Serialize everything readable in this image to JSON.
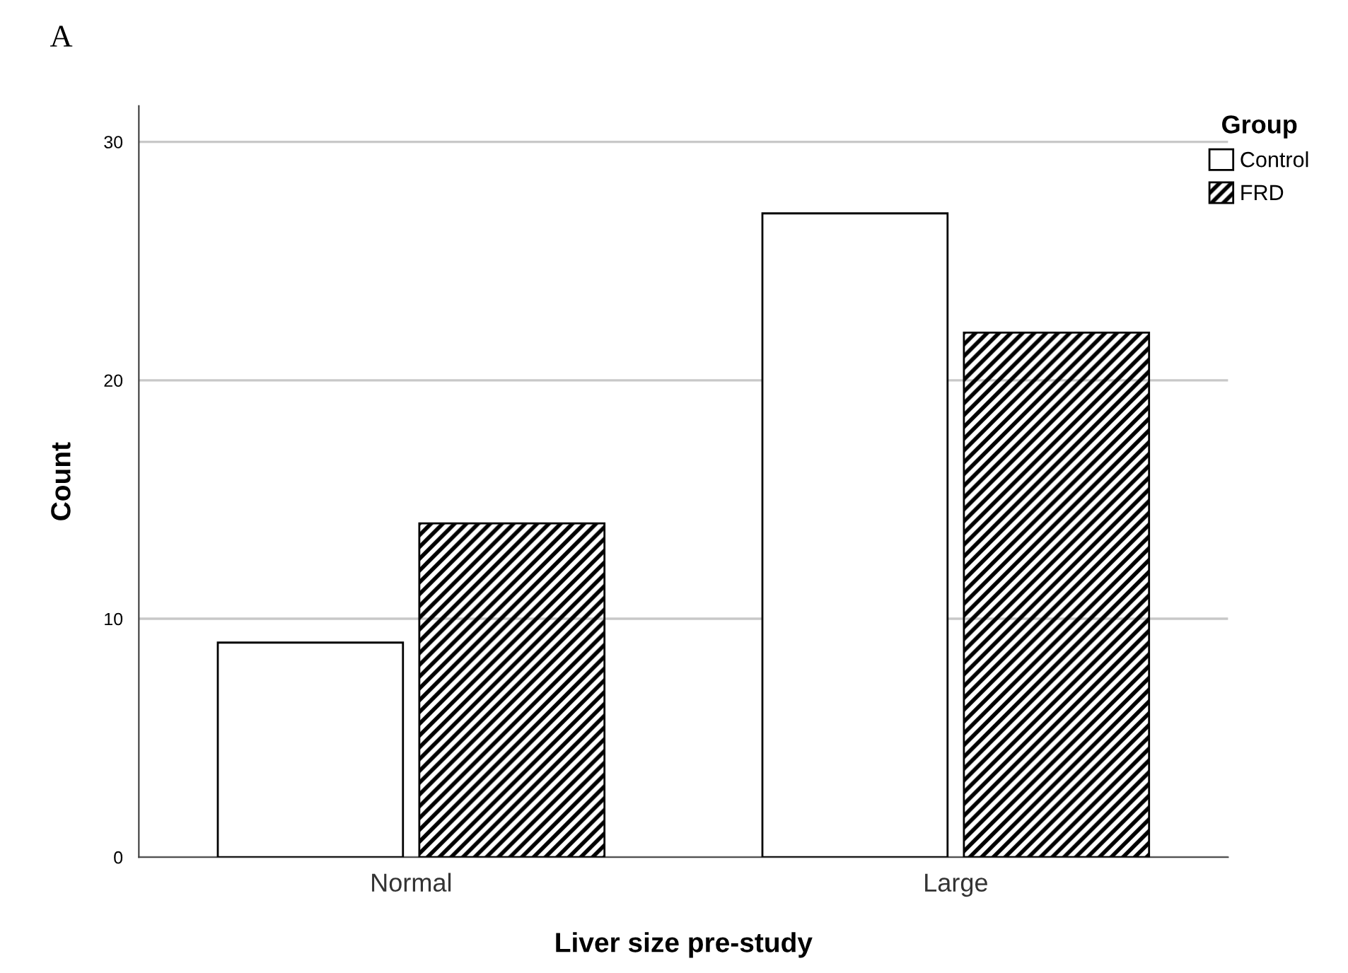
{
  "chart_data": {
    "type": "bar",
    "xlabel": "Liver size pre-study",
    "ylabel": "Count",
    "categories": [
      "Normal",
      "Large"
    ],
    "series": [
      {
        "name": "Control",
        "color": "#ffffff",
        "values": [
          9,
          27
        ]
      },
      {
        "name": "FRD",
        "color": "#000000",
        "values": [
          14,
          22
        ]
      }
    ],
    "legend_title": "Group",
    "legend": "top right",
    "ylim": [
      0,
      31.5
    ],
    "yticks": [
      0,
      10,
      20,
      30
    ],
    "grid": "y",
    "annotations": [
      "A"
    ]
  }
}
